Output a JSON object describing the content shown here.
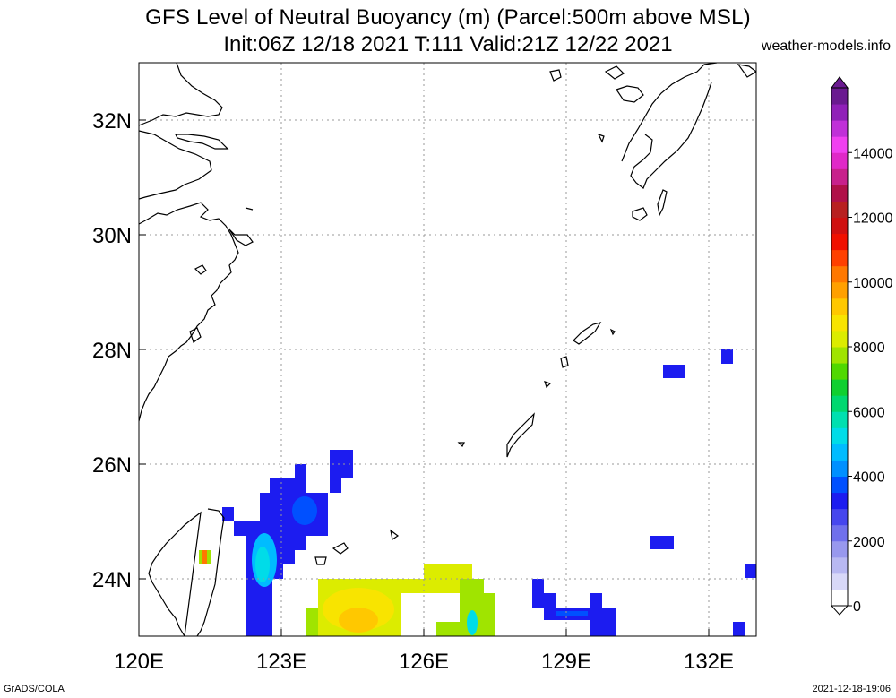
{
  "title_line1": "GFS Level of Neutral Buoyancy (m) (Parcel:500m above MSL)",
  "title_line2": "Init:06Z 12/18 2021 T:111 Valid:21Z 12/22 2021",
  "site": "weather-models.info",
  "footer_left": "GrADS/COLA",
  "footer_right": "2021-12-18-19:06",
  "map": {
    "lon_range": [
      120,
      133
    ],
    "lat_range": [
      23,
      33
    ],
    "x_ticks": [
      {
        "value": 120,
        "label": "120E"
      },
      {
        "value": 123,
        "label": "123E"
      },
      {
        "value": 126,
        "label": "126E"
      },
      {
        "value": 129,
        "label": "129E"
      },
      {
        "value": 132,
        "label": "132E"
      }
    ],
    "y_ticks": [
      {
        "value": 24,
        "label": "24N"
      },
      {
        "value": 26,
        "label": "26N"
      },
      {
        "value": 28,
        "label": "28N"
      },
      {
        "value": 30,
        "label": "30N"
      },
      {
        "value": 32,
        "label": "32N"
      }
    ],
    "gridlines": true
  },
  "colorbar": {
    "labels": [
      "0",
      "2000",
      "4000",
      "6000",
      "8000",
      "10000",
      "12000",
      "14000"
    ],
    "colors": [
      "#ffffff",
      "#d8d8f8",
      "#b8b8f2",
      "#9898ee",
      "#7070ec",
      "#4646ee",
      "#1c1cf0",
      "#0050ff",
      "#0090ff",
      "#00bcff",
      "#00dce8",
      "#00e0b0",
      "#00d870",
      "#10d030",
      "#50d800",
      "#a0e400",
      "#dcec00",
      "#f8e400",
      "#ffc800",
      "#ffa000",
      "#ff7800",
      "#ff4000",
      "#f01000",
      "#d01010",
      "#b82020",
      "#b01048",
      "#c8208c",
      "#e028c8",
      "#f040f0",
      "#c030d8",
      "#9020b8",
      "#6a1a90"
    ]
  }
}
